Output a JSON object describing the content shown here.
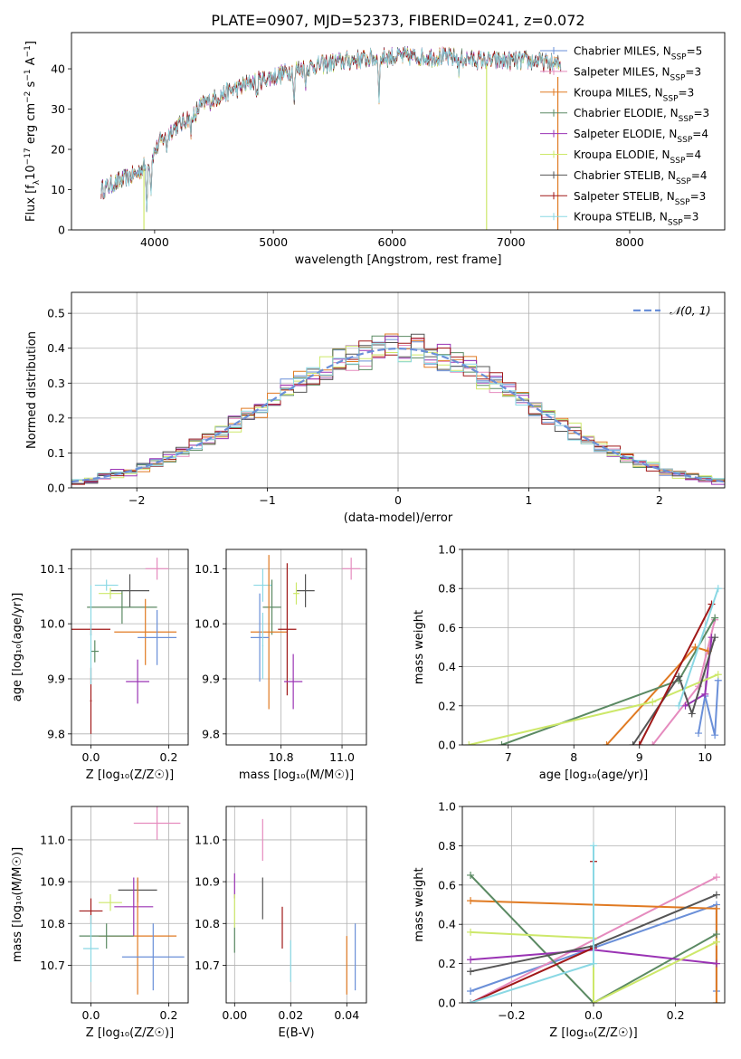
{
  "figure_title": "PLATE=0907, MJD=52373, FIBERID=0241, z=0.072",
  "colors": {
    "Chabrier MILES": "#6a8fd8",
    "Salpeter MILES": "#e58bbe",
    "Kroupa MILES": "#e07a22",
    "Chabrier ELODIE": "#5b8a63",
    "Salpeter ELODIE": "#9a33b4",
    "Kroupa ELODIE": "#cde86a",
    "Chabrier STELIB": "#555555",
    "Salpeter STELIB": "#a01818",
    "Kroupa STELIB": "#8ad8e4",
    "gaussian": "#6a8fd8"
  },
  "chart_data": [
    {
      "type": "line",
      "id": "spectrum",
      "title": "",
      "xlabel": "wavelength [Angstrom, rest frame]",
      "ylabel": "Flux [f_λ10^-17 erg cm^-2 s^-1 A^-1]",
      "xlim": [
        3300,
        8800
      ],
      "ylim": [
        0,
        49
      ],
      "xticks": [
        4000,
        5000,
        6000,
        7000,
        8000
      ],
      "yticks": [
        0,
        10,
        20,
        30,
        40
      ],
      "grid": false,
      "legend_position": "upper right",
      "series": [
        {
          "name": "Chabrier MILES, N_SSP=5"
        },
        {
          "name": "Salpeter MILES, N_SSP=3"
        },
        {
          "name": "Kroupa MILES, N_SSP=3"
        },
        {
          "name": "Chabrier ELODIE, N_SSP=3"
        },
        {
          "name": "Salpeter ELODIE, N_SSP=4"
        },
        {
          "name": "Kroupa ELODIE, N_SSP=4"
        },
        {
          "name": "Chabrier STELIB, N_SSP=4"
        },
        {
          "name": "Salpeter STELIB, N_SSP=3"
        },
        {
          "name": "Kroupa STELIB, N_SSP=3"
        }
      ],
      "continuum": {
        "x": [
          3550,
          3700,
          3850,
          3950,
          4050,
          4150,
          4250,
          4400,
          4600,
          4800,
          5000,
          5200,
          5400,
          5600,
          5800,
          6000,
          6200,
          6400,
          6600,
          6800,
          7000,
          7200,
          7400
        ],
        "y": [
          10,
          12,
          14,
          17,
          22,
          25,
          27,
          31,
          34,
          36.5,
          38,
          40,
          41,
          42,
          42.5,
          43,
          43,
          43,
          42.5,
          42,
          42,
          42,
          41
        ]
      }
    },
    {
      "type": "step",
      "id": "residuals",
      "xlabel": "(data-model)/error",
      "ylabel": "Normed distribution",
      "xlim": [
        -2.5,
        2.5
      ],
      "ylim": [
        0,
        0.56
      ],
      "xticks": [
        -2,
        -1,
        0,
        1,
        2
      ],
      "yticks": [
        0.0,
        0.1,
        0.2,
        0.3,
        0.4,
        0.5
      ],
      "grid": true,
      "legend_position": "upper right",
      "legend": [
        "𝒩(0, 1)"
      ],
      "bins": {
        "start": -2.5,
        "width": 0.1,
        "count": 50
      },
      "gaussian": {
        "mean": 0,
        "sigma": 1
      }
    },
    {
      "type": "scatter-errorbar",
      "id": "age_vs_Z",
      "xlabel": "Z [log₁₀(Z/Z☉)]",
      "ylabel": "age  [log₁₀(age/yr)]",
      "xlim": [
        -0.05,
        0.25
      ],
      "ylim": [
        9.78,
        10.135
      ],
      "xticks": [
        0.0,
        0.2
      ],
      "yticks": [
        9.8,
        9.9,
        10.0,
        10.1
      ],
      "grid": true,
      "points": [
        {
          "model": "Salpeter MILES",
          "x": 0.17,
          "xerr": 0.03,
          "y": 10.1,
          "yerr": 0.02
        },
        {
          "model": "Kroupa STELIB",
          "x": 0.04,
          "xerr": 0.03,
          "y": 10.07,
          "yerr": 0.01
        },
        {
          "model": "Chabrier STELIB",
          "x": 0.1,
          "xerr": 0.05,
          "y": 10.06,
          "yerr": 0.03
        },
        {
          "model": "Kroupa ELODIE",
          "x": 0.05,
          "xerr": 0.03,
          "y": 10.055,
          "yerr": 0.01
        },
        {
          "model": "Chabrier ELODIE",
          "x": 0.08,
          "xerr": 0.09,
          "y": 10.03,
          "yerr": 0.03
        },
        {
          "model": "Chabrier ELODIE",
          "x": 0.01,
          "xerr": 0.01,
          "y": 9.95,
          "yerr": 0.02
        },
        {
          "model": "Salpeter STELIB",
          "x": 0.0,
          "xerr": 0.05,
          "y": 9.99,
          "yerr": 0.01
        },
        {
          "model": "Kroupa MILES",
          "x": 0.14,
          "xerr": 0.08,
          "y": 9.985,
          "yerr": 0.06
        },
        {
          "model": "Chabrier MILES",
          "x": 0.17,
          "xerr": 0.05,
          "y": 9.975,
          "yerr": 0.05
        },
        {
          "model": "Salpeter ELODIE",
          "x": 0.12,
          "xerr": 0.03,
          "y": 9.895,
          "yerr": 0.04
        },
        {
          "model": "Salpeter STELIB",
          "x": 0.0,
          "xerr": 0.002,
          "y": 9.86,
          "yerr": 0.06
        },
        {
          "model": "Kroupa STELIB",
          "x": 0.0,
          "xerr": 0.002,
          "y": 9.98,
          "yerr": 0.09
        }
      ]
    },
    {
      "type": "scatter-errorbar",
      "id": "age_vs_mass",
      "xlabel": "mass [log₁₀(M/M☉)]",
      "ylabel": "",
      "xlim": [
        10.62,
        11.08
      ],
      "ylim": [
        9.78,
        10.135
      ],
      "xticks": [
        10.8,
        11.0
      ],
      "yticks": [
        9.8,
        9.9,
        10.0,
        10.1
      ],
      "grid": true,
      "points": [
        {
          "model": "Salpeter MILES",
          "x": 11.03,
          "xerr": 0.03,
          "y": 10.1,
          "yerr": 0.02
        },
        {
          "model": "Kroupa STELIB",
          "x": 10.74,
          "xerr": 0.03,
          "y": 10.07,
          "yerr": 0.03
        },
        {
          "model": "Chabrier STELIB",
          "x": 10.88,
          "xerr": 0.03,
          "y": 10.06,
          "yerr": 0.03
        },
        {
          "model": "Kroupa ELODIE",
          "x": 10.85,
          "xerr": 0.01,
          "y": 10.055,
          "yerr": 0.02
        },
        {
          "model": "Chabrier ELODIE",
          "x": 10.77,
          "xerr": 0.03,
          "y": 10.03,
          "yerr": 0.05
        },
        {
          "model": "Kroupa MILES",
          "x": 10.76,
          "xerr": 0.06,
          "y": 9.985,
          "yerr": 0.14
        },
        {
          "model": "Salpeter STELIB",
          "x": 10.82,
          "xerr": 0.03,
          "y": 9.99,
          "yerr": 0.12
        },
        {
          "model": "Chabrier MILES",
          "x": 10.73,
          "xerr": 0.03,
          "y": 9.975,
          "yerr": 0.08
        },
        {
          "model": "Salpeter ELODIE",
          "x": 10.84,
          "xerr": 0.03,
          "y": 9.895,
          "yerr": 0.05
        },
        {
          "model": "Kroupa STELIB",
          "x": 10.74,
          "xerr": 0.002,
          "y": 9.96,
          "yerr": 0.06
        }
      ]
    },
    {
      "type": "line",
      "id": "weight_vs_age",
      "xlabel": "age  [log₁₀(age/yr)]",
      "ylabel": "mass weight",
      "xlim": [
        6.3,
        10.3
      ],
      "ylim": [
        0,
        1
      ],
      "xticks": [
        7,
        8,
        9,
        10
      ],
      "yticks": [
        0.0,
        0.2,
        0.4,
        0.6,
        0.8,
        1.0
      ],
      "grid": true,
      "series": [
        {
          "model": "Chabrier MILES",
          "x": [
            9.9,
            10.0,
            10.15,
            10.2
          ],
          "y": [
            0.06,
            0.25,
            0.05,
            0.33
          ]
        },
        {
          "model": "Salpeter MILES",
          "x": [
            9.2,
            9.9,
            10.15
          ],
          "y": [
            0.0,
            0.3,
            0.64
          ]
        },
        {
          "model": "Kroupa MILES",
          "x": [
            8.5,
            9.85,
            10.05
          ],
          "y": [
            0.0,
            0.5,
            0.48
          ]
        },
        {
          "model": "Chabrier ELODIE",
          "x": [
            6.9,
            9.6,
            10.15
          ],
          "y": [
            0.0,
            0.33,
            0.65
          ]
        },
        {
          "model": "Salpeter ELODIE",
          "x": [
            9.7,
            10.0,
            10.1
          ],
          "y": [
            0.2,
            0.26,
            0.55
          ]
        },
        {
          "model": "Kroupa ELODIE",
          "x": [
            6.4,
            9.2,
            10.2
          ],
          "y": [
            0.0,
            0.22,
            0.36
          ]
        },
        {
          "model": "Chabrier STELIB",
          "x": [
            8.9,
            9.6,
            9.8,
            10.15
          ],
          "y": [
            0.0,
            0.35,
            0.16,
            0.55
          ]
        },
        {
          "model": "Salpeter STELIB",
          "x": [
            9.0,
            10.1
          ],
          "y": [
            0.0,
            0.72
          ]
        },
        {
          "model": "Kroupa STELIB",
          "x": [
            9.6,
            10.2
          ],
          "y": [
            0.2,
            0.8
          ]
        }
      ]
    },
    {
      "type": "scatter-errorbar",
      "id": "mass_vs_Z",
      "xlabel": "Z [log₁₀(Z/Z☉)]",
      "ylabel": "mass [log₁₀(M/M☉)]",
      "xlim": [
        -0.05,
        0.25
      ],
      "ylim": [
        10.61,
        11.08
      ],
      "xticks": [
        0.0,
        0.2
      ],
      "yticks": [
        10.7,
        10.8,
        10.9,
        11.0
      ],
      "grid": true,
      "points": [
        {
          "model": "Salpeter MILES",
          "x": 0.17,
          "xerr": 0.06,
          "y": 11.04,
          "yerr": 0.04
        },
        {
          "model": "Chabrier STELIB",
          "x": 0.12,
          "xerr": 0.05,
          "y": 10.88,
          "yerr": 0.03
        },
        {
          "model": "Kroupa ELODIE",
          "x": 0.05,
          "xerr": 0.03,
          "y": 10.85,
          "yerr": 0.02
        },
        {
          "model": "Salpeter ELODIE",
          "x": 0.11,
          "xerr": 0.05,
          "y": 10.84,
          "yerr": 0.07
        },
        {
          "model": "Salpeter STELIB",
          "x": 0.0,
          "xerr": 0.03,
          "y": 10.83,
          "yerr": 0.03
        },
        {
          "model": "Kroupa MILES",
          "x": 0.12,
          "xerr": 0.1,
          "y": 10.77,
          "yerr": 0.14
        },
        {
          "model": "Chabrier ELODIE",
          "x": 0.04,
          "xerr": 0.07,
          "y": 10.77,
          "yerr": 0.03
        },
        {
          "model": "Kroupa STELIB",
          "x": 0.0,
          "xerr": 0.02,
          "y": 10.74,
          "yerr": 0.08
        },
        {
          "model": "Chabrier MILES",
          "x": 0.16,
          "xerr": 0.08,
          "y": 10.72,
          "yerr": 0.08
        }
      ]
    },
    {
      "type": "scatter-errorbar",
      "id": "mass_vs_ebv",
      "xlabel": "E(B-V)",
      "ylabel": "",
      "xlim": [
        -0.003,
        0.047
      ],
      "ylim": [
        10.61,
        11.08
      ],
      "xticks": [
        0.0,
        0.02,
        0.04
      ],
      "yticks": [
        10.7,
        10.8,
        10.9,
        11.0
      ],
      "grid": true,
      "points": [
        {
          "model": "Salpeter MILES",
          "x": 0.01,
          "y": 11.0,
          "yerr": 0.05
        },
        {
          "model": "Salpeter ELODIE",
          "x": 0.0,
          "y": 10.89,
          "yerr": 0.03
        },
        {
          "model": "Chabrier STELIB",
          "x": 0.01,
          "y": 10.86,
          "yerr": 0.05
        },
        {
          "model": "Kroupa ELODIE",
          "x": 0.0,
          "y": 10.83,
          "yerr": 0.04
        },
        {
          "model": "Salpeter STELIB",
          "x": 0.017,
          "y": 10.79,
          "yerr": 0.05
        },
        {
          "model": "Chabrier ELODIE",
          "x": 0.0,
          "y": 10.76,
          "yerr": 0.03
        },
        {
          "model": "Kroupa STELIB",
          "x": 0.02,
          "y": 10.71,
          "yerr": 0.05
        },
        {
          "model": "Kroupa MILES",
          "x": 0.04,
          "y": 10.7,
          "yerr": 0.07
        },
        {
          "model": "Chabrier MILES",
          "x": 0.043,
          "y": 10.72,
          "yerr": 0.08
        }
      ]
    },
    {
      "type": "line",
      "id": "weight_vs_Z",
      "xlabel": "Z [log₁₀(Z/Z☉)]",
      "ylabel": "mass weight",
      "xlim": [
        -0.32,
        0.32
      ],
      "ylim": [
        0,
        1
      ],
      "xticks": [
        -0.2,
        0.0,
        0.2
      ],
      "yticks": [
        0.0,
        0.2,
        0.4,
        0.6,
        0.8,
        1.0
      ],
      "grid": true,
      "series": [
        {
          "model": "Chabrier MILES",
          "x": [
            -0.3,
            0.3,
            0.3
          ],
          "y": [
            0.06,
            0.5,
            0.06
          ]
        },
        {
          "model": "Salpeter MILES",
          "x": [
            -0.3,
            0.3
          ],
          "y": [
            0.0,
            0.64
          ]
        },
        {
          "model": "Kroupa MILES",
          "x": [
            -0.3,
            0.3,
            0.3
          ],
          "y": [
            0.52,
            0.48,
            0.0
          ]
        },
        {
          "model": "Chabrier ELODIE",
          "x": [
            -0.3,
            0.0,
            0.3
          ],
          "y": [
            0.65,
            0.0,
            0.35
          ]
        },
        {
          "model": "Salpeter ELODIE",
          "x": [
            -0.3,
            0.0,
            0.3
          ],
          "y": [
            0.22,
            0.27,
            0.2
          ]
        },
        {
          "model": "Kroupa ELODIE",
          "x": [
            -0.3,
            0.0,
            0.0,
            0.3
          ],
          "y": [
            0.36,
            0.33,
            0.0,
            0.31
          ]
        },
        {
          "model": "Chabrier STELIB",
          "x": [
            -0.3,
            0.0,
            0.3
          ],
          "y": [
            0.16,
            0.29,
            0.55
          ]
        },
        {
          "model": "Salpeter STELIB",
          "x": [
            -0.3,
            0.0,
            0.0
          ],
          "y": [
            0.0,
            0.28,
            0.72
          ]
        },
        {
          "model": "Kroupa STELIB",
          "x": [
            -0.3,
            0.0,
            0.0
          ],
          "y": [
            0.0,
            0.2,
            0.8
          ]
        }
      ]
    }
  ]
}
